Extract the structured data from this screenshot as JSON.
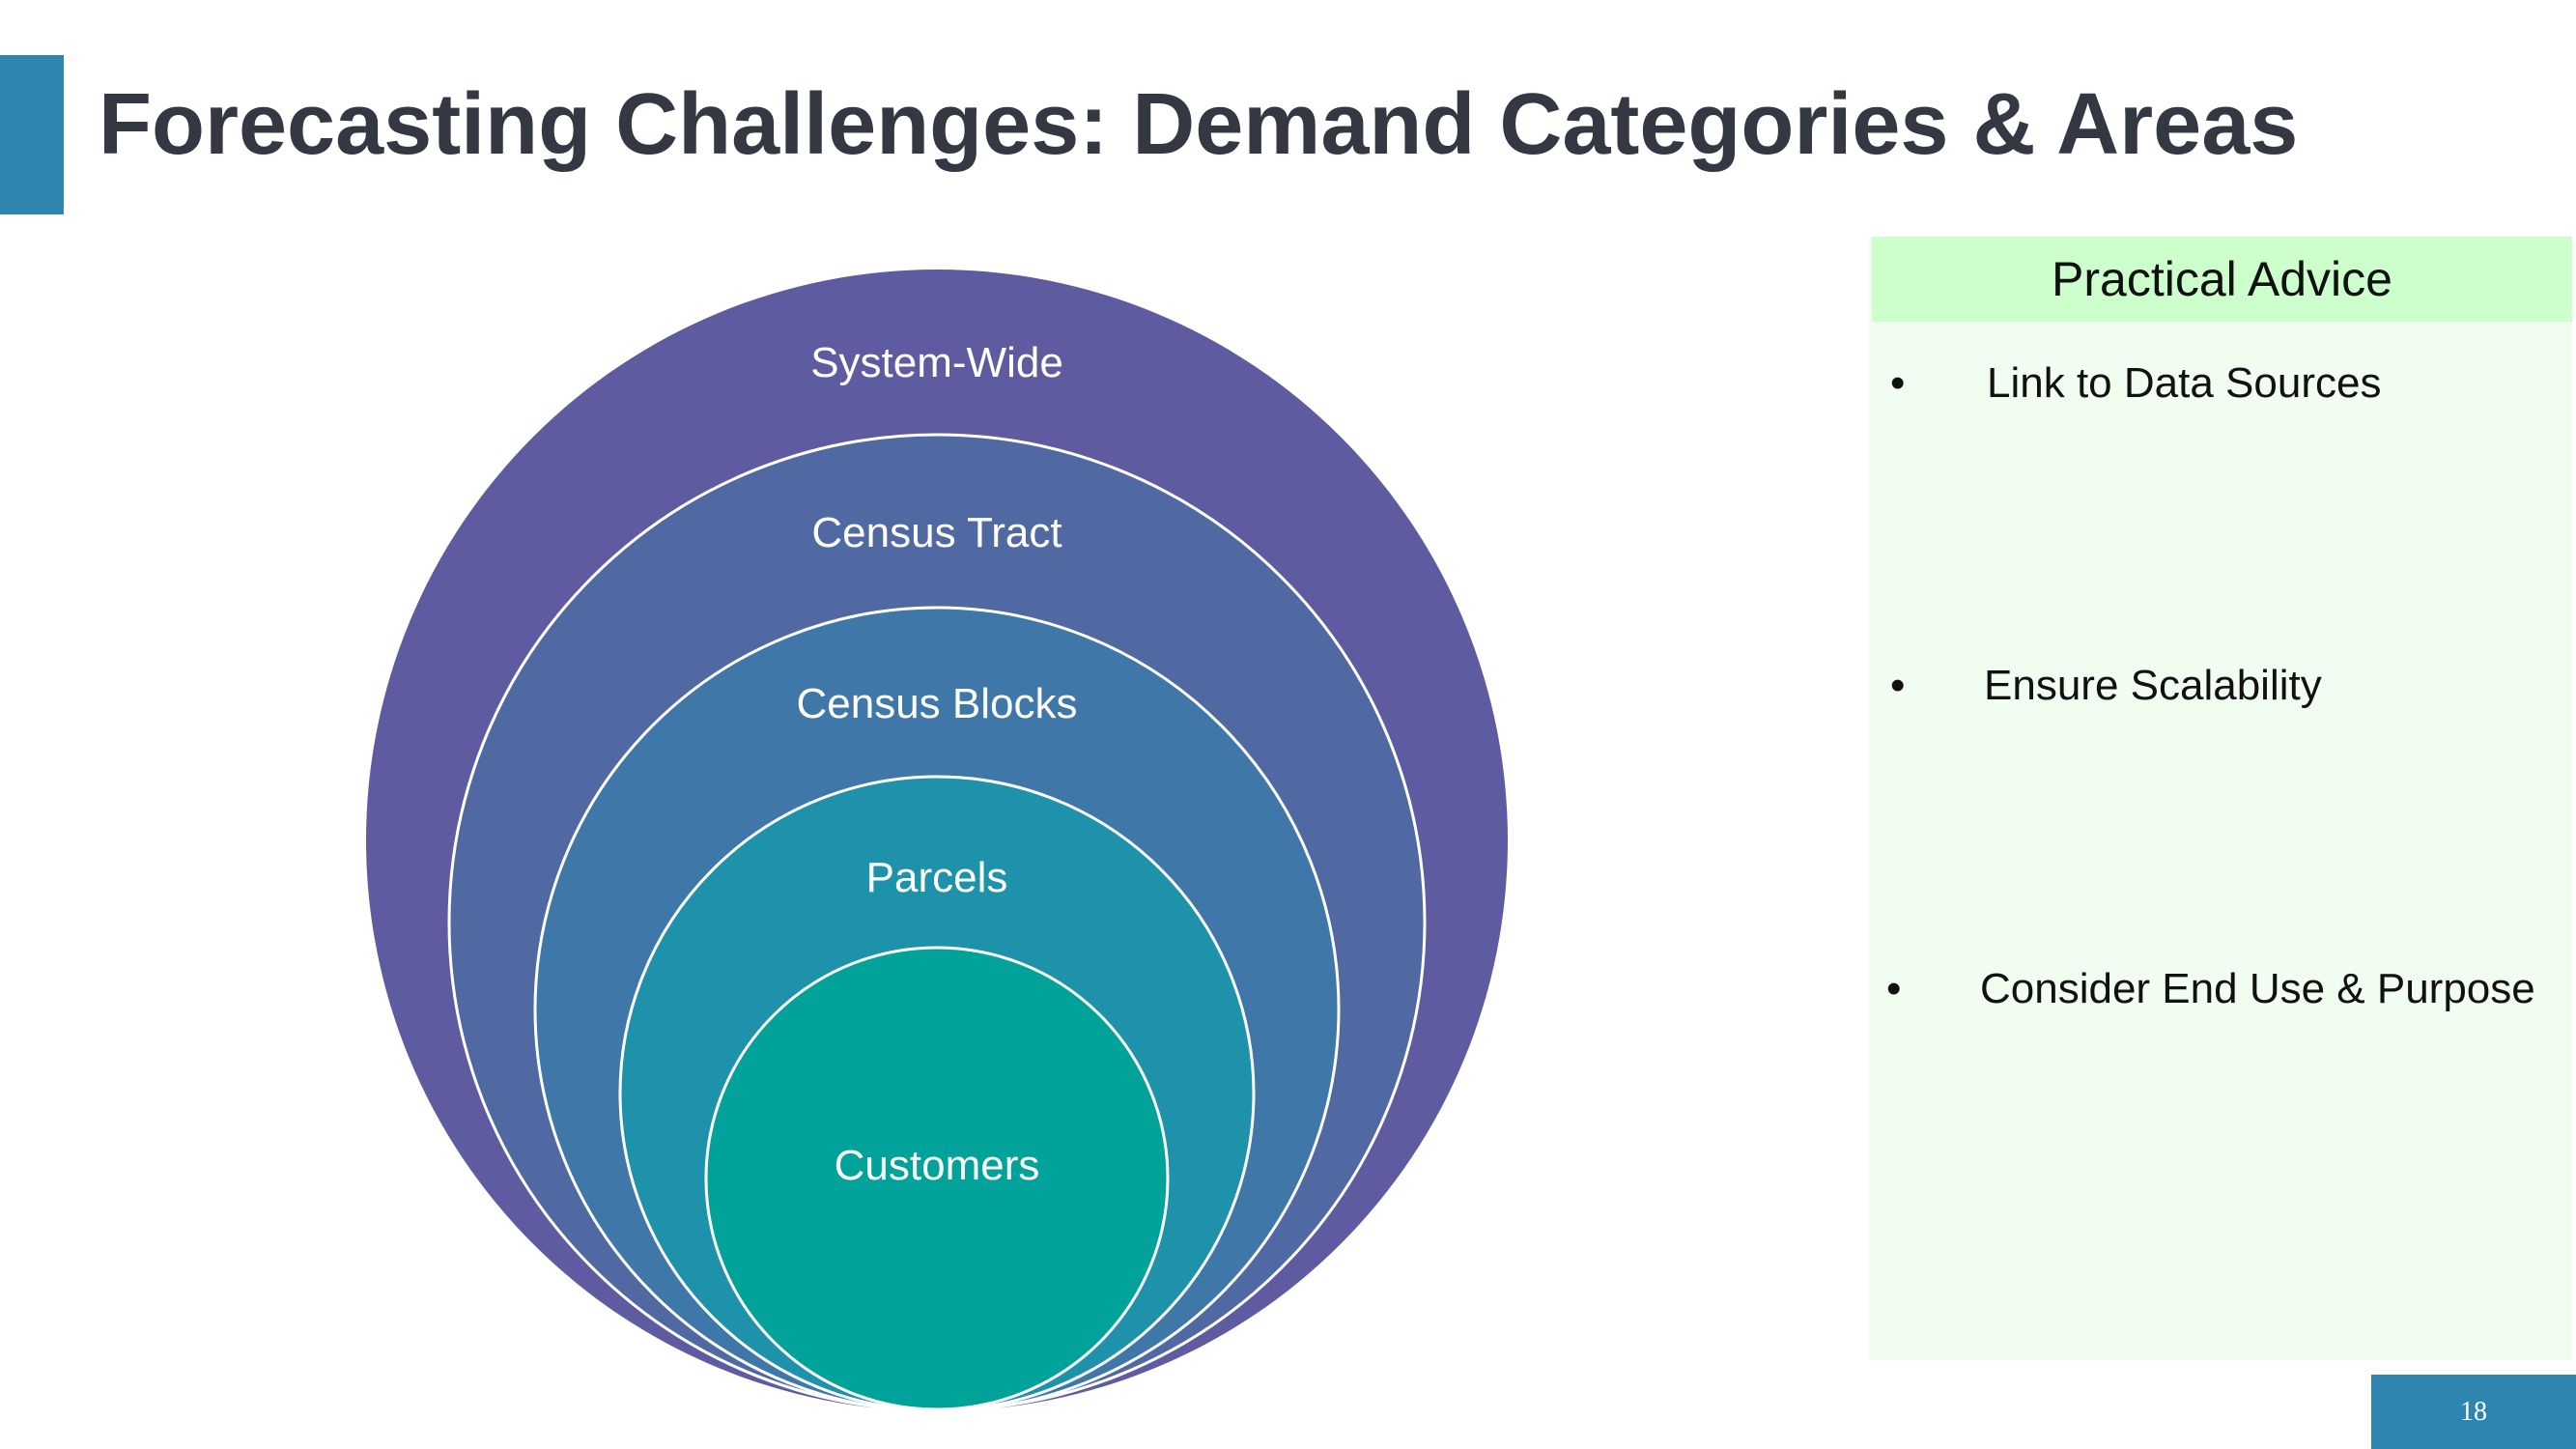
{
  "slide": {
    "title": "Forecasting Challenges: Demand Categories & Areas",
    "page_number": "18"
  },
  "diagram": {
    "levels": [
      {
        "label": "System-Wide",
        "color": "#5E5BA0"
      },
      {
        "label": "Census Tract",
        "color": "#5069A2"
      },
      {
        "label": "Census Blocks",
        "color": "#3F78A8"
      },
      {
        "label": "Parcels",
        "color": "#1E92AA"
      },
      {
        "label": "Customers",
        "color": "#00A29A"
      }
    ]
  },
  "advice": {
    "header": "Practical Advice",
    "items": [
      {
        "bullet": "•",
        "text": "Link to Data Sources"
      },
      {
        "bullet": "•",
        "text": "Ensure Scalability"
      },
      {
        "bullet": "•",
        "text": "Consider End Use & Purpose"
      }
    ]
  },
  "colors": {
    "accent": "#2E86B0",
    "title_text": "#333842",
    "panel_bg": "#F2FDF2",
    "panel_header_bg": "#CCFFCC"
  }
}
